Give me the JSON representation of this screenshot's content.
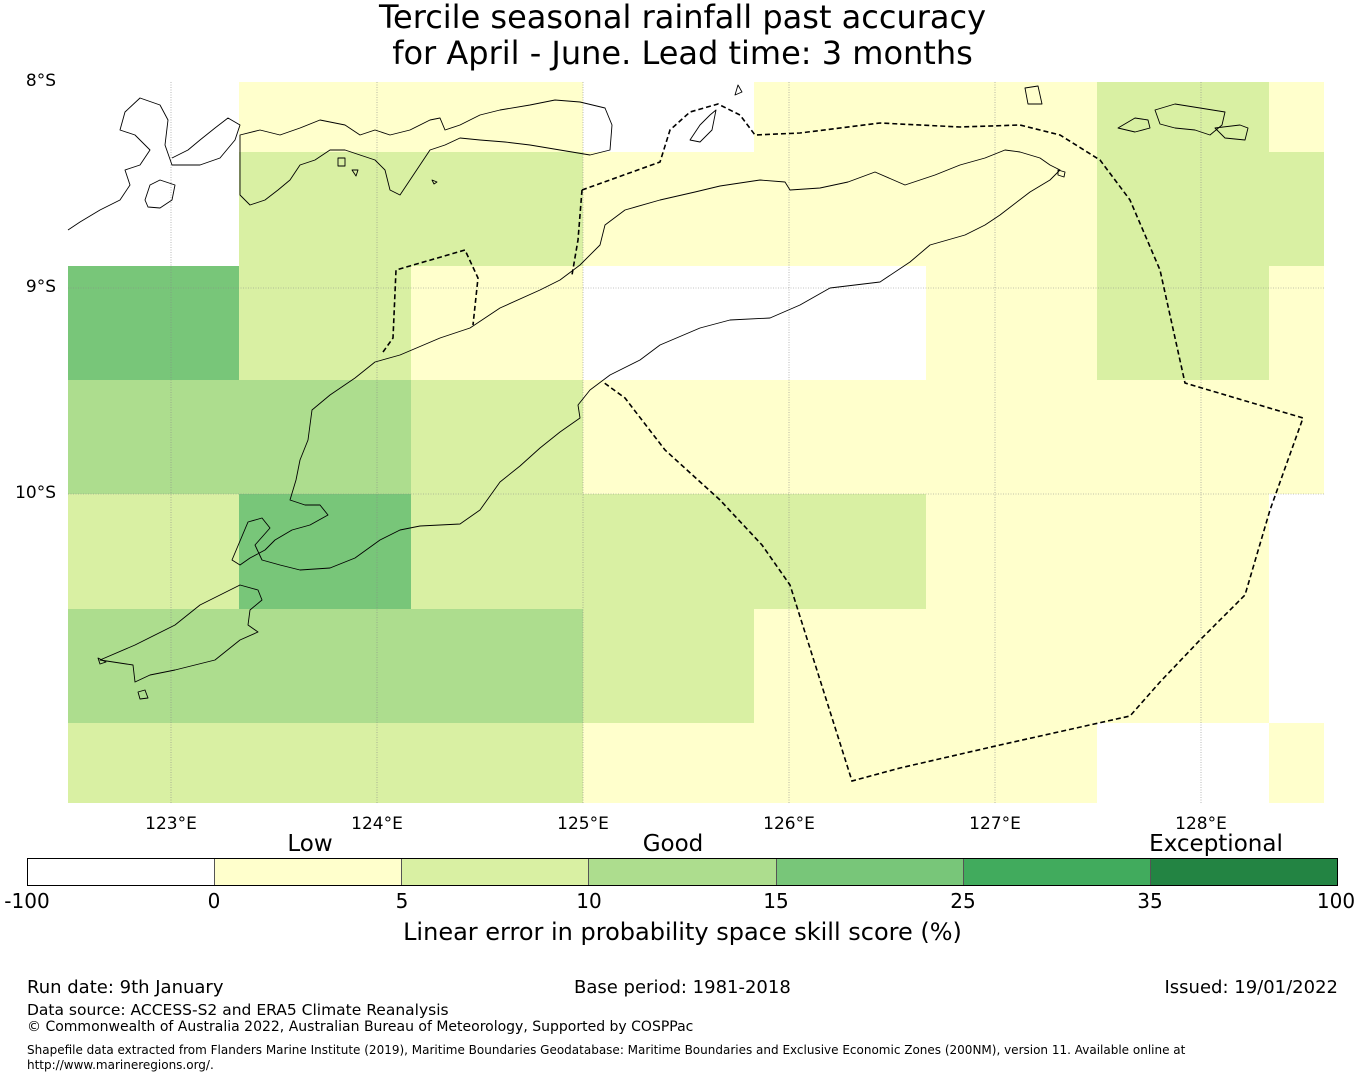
{
  "title_line1": "Tercile seasonal rainfall past accuracy",
  "title_line2": "for April - June. Lead time: 3 months",
  "map": {
    "lon_range": [
      122.5,
      128.6
    ],
    "lat_range": [
      -11.5,
      -8.0
    ],
    "lat_labels": [
      "8°S",
      "9°S",
      "10°S"
    ],
    "lon_labels": [
      "123°E",
      "124°E",
      "125°E",
      "126°E",
      "127°E",
      "128°E"
    ],
    "grid": true
  },
  "legend": {
    "categories": [
      "Low",
      "Good",
      "Exceptional"
    ],
    "ticks": [
      "-100",
      "0",
      "5",
      "10",
      "15",
      "25",
      "35",
      "100"
    ],
    "colors": [
      "#ffffff",
      "#ffffcc",
      "#d9f0a3",
      "#addd8e",
      "#78c679",
      "#41ab5d",
      "#238443"
    ],
    "label": "Linear error in probability space skill score (%)"
  },
  "footer": {
    "run_date": "Run date: 9th January",
    "base_period": "Base period: 1981-2018",
    "issued": "Issued: 19/01/2022",
    "data_source": "Data source: ACCESS-S2 and ERA5 Climate Reanalysis",
    "copyright": "© Commonwealth of Australia 2022, Australian Bureau of Meteorology, Supported by COSPPac",
    "shapefile": "Shapefile data extracted from Flanders Marine Institute (2019), Maritime Boundaries Geodatabase: Maritime Boundaries and Exclusive Economic Zones (200NM), version 11. Available online at http://www.marineregions.org/."
  }
}
